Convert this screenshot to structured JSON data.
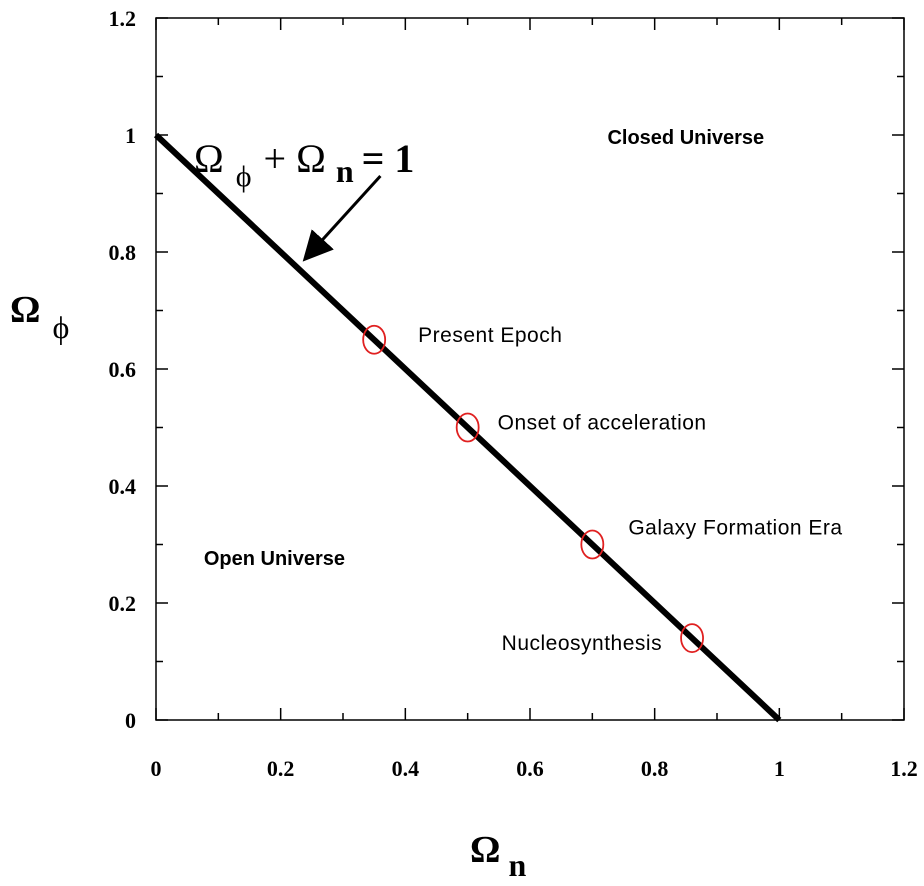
{
  "chart_data": {
    "type": "line",
    "title": "",
    "xlabel": {
      "symbol": "Ω",
      "subscript": "n"
    },
    "ylabel": {
      "symbol": "Ω",
      "subscript": "ϕ"
    },
    "xlim": [
      0,
      1.2
    ],
    "ylim": [
      0,
      1.2
    ],
    "xticks": [
      0,
      0.2,
      0.4,
      0.6,
      0.8,
      1,
      1.2
    ],
    "yticks": [
      0,
      0.2,
      0.4,
      0.6,
      0.8,
      1,
      1.2
    ],
    "xtick_labels": [
      "0",
      "0.2",
      "0.4",
      "0.6",
      "0.8",
      "1",
      "1.2"
    ],
    "ytick_labels": [
      "0",
      "0.2",
      "0.4",
      "0.6",
      "0.8",
      "1",
      "1.2"
    ],
    "grid": false,
    "line": {
      "x": [
        0,
        1
      ],
      "y": [
        1,
        0
      ],
      "color": "#000000"
    },
    "points": [
      {
        "label": "Present Epoch",
        "x": 0.35,
        "y": 0.65
      },
      {
        "label": "Onset of acceleration",
        "x": 0.5,
        "y": 0.5
      },
      {
        "label": "Galaxy Formation Era",
        "x": 0.7,
        "y": 0.3
      },
      {
        "label": "Nucleosynthesis",
        "x": 0.86,
        "y": 0.14
      }
    ],
    "marker_color": "#e02020",
    "regions": [
      {
        "label": "Closed Universe",
        "x": 0.85,
        "y": 0.985
      },
      {
        "label": "Open Universe",
        "x": 0.19,
        "y": 0.265
      }
    ],
    "annotation": {
      "parts": [
        "Ω",
        "ϕ",
        "+ Ω",
        "n",
        "= 1"
      ],
      "arrow_from": [
        0.36,
        0.93
      ],
      "arrow_to": [
        0.245,
        0.795
      ]
    }
  }
}
